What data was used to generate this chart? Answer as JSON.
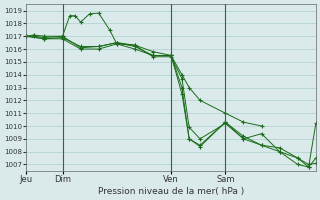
{
  "bg_color": "#daeaea",
  "grid_color": "#aecece",
  "line_color": "#1a6b1a",
  "marker_color": "#1a6b1a",
  "xlabel": "Pression niveau de la mer( hPa )",
  "ylim": [
    1006.5,
    1019.5
  ],
  "yticks": [
    1007,
    1008,
    1009,
    1010,
    1011,
    1012,
    1013,
    1014,
    1015,
    1016,
    1017,
    1018,
    1019
  ],
  "xtick_labels": [
    "Jeu",
    "Dim",
    "Ven",
    "Sam"
  ],
  "xtick_positions": [
    0,
    1,
    4,
    5.5
  ],
  "xlim": [
    0,
    8
  ],
  "vlines": [
    1,
    4,
    5.5
  ],
  "series": [
    [
      [
        0.0,
        1017.0
      ],
      [
        0.2,
        1017.0
      ],
      [
        0.5,
        1016.9
      ],
      [
        1.0,
        1017.0
      ],
      [
        1.5,
        1016.1
      ],
      [
        2.0,
        1016.2
      ],
      [
        2.5,
        1016.5
      ],
      [
        3.0,
        1016.3
      ],
      [
        3.5,
        1015.8
      ],
      [
        4.0,
        1015.5
      ],
      [
        4.3,
        1014.0
      ],
      [
        4.5,
        1013.0
      ],
      [
        4.8,
        1012.0
      ],
      [
        5.5,
        1011.0
      ],
      [
        6.0,
        1010.3
      ],
      [
        6.5,
        1010.0
      ]
    ],
    [
      [
        0.0,
        1017.0
      ],
      [
        0.2,
        1017.1
      ],
      [
        0.5,
        1017.0
      ],
      [
        1.0,
        1017.0
      ],
      [
        1.2,
        1018.6
      ],
      [
        1.35,
        1018.6
      ],
      [
        1.5,
        1018.1
      ],
      [
        1.75,
        1018.75
      ],
      [
        2.0,
        1018.8
      ],
      [
        2.3,
        1017.5
      ],
      [
        2.5,
        1016.4
      ],
      [
        3.0,
        1016.3
      ],
      [
        3.5,
        1015.4
      ],
      [
        4.0,
        1015.4
      ],
      [
        4.3,
        1013.7
      ],
      [
        4.5,
        1009.9
      ],
      [
        4.8,
        1009.0
      ],
      [
        5.5,
        1010.2
      ],
      [
        6.0,
        1009.0
      ],
      [
        6.5,
        1008.5
      ],
      [
        7.0,
        1008.0
      ],
      [
        7.5,
        1007.0
      ],
      [
        7.8,
        1006.8
      ],
      [
        8.0,
        1010.2
      ]
    ],
    [
      [
        0.0,
        1017.0
      ],
      [
        0.5,
        1016.8
      ],
      [
        1.0,
        1016.9
      ],
      [
        1.5,
        1016.2
      ],
      [
        2.0,
        1016.2
      ],
      [
        2.5,
        1016.5
      ],
      [
        3.0,
        1016.2
      ],
      [
        3.5,
        1015.5
      ],
      [
        4.0,
        1015.5
      ],
      [
        4.3,
        1013.0
      ],
      [
        4.5,
        1009.0
      ],
      [
        4.8,
        1008.5
      ],
      [
        5.5,
        1010.3
      ],
      [
        6.0,
        1009.0
      ],
      [
        6.5,
        1009.4
      ],
      [
        7.0,
        1008.0
      ],
      [
        7.5,
        1007.5
      ],
      [
        7.8,
        1007.0
      ],
      [
        8.0,
        1007.1
      ]
    ],
    [
      [
        0.0,
        1017.0
      ],
      [
        0.5,
        1016.8
      ],
      [
        1.0,
        1016.8
      ],
      [
        1.5,
        1016.0
      ],
      [
        2.0,
        1016.0
      ],
      [
        2.5,
        1016.4
      ],
      [
        3.0,
        1016.0
      ],
      [
        3.5,
        1015.5
      ],
      [
        4.0,
        1015.5
      ],
      [
        4.3,
        1012.5
      ],
      [
        4.5,
        1009.0
      ],
      [
        4.8,
        1008.4
      ],
      [
        5.5,
        1010.3
      ],
      [
        6.0,
        1009.2
      ],
      [
        6.5,
        1008.5
      ],
      [
        7.0,
        1008.3
      ],
      [
        7.5,
        1007.5
      ],
      [
        7.8,
        1006.8
      ],
      [
        8.0,
        1007.5
      ]
    ]
  ]
}
